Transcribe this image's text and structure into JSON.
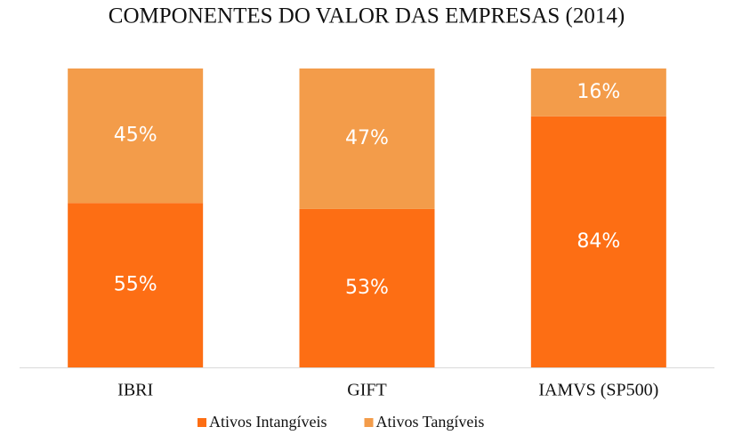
{
  "chart_data": {
    "type": "bar",
    "stacked": true,
    "title": "COMPONENTES DO VALOR DAS EMPRESAS (2014)",
    "categories": [
      "IBRI",
      "GIFT",
      "IAMVS (SP500)"
    ],
    "series": [
      {
        "name": "Ativos Intangíveis",
        "color": "#fd6e14",
        "values": [
          55,
          53,
          84
        ],
        "value_labels": [
          "55%",
          "53%",
          "84%"
        ]
      },
      {
        "name": "Ativos Tangíveis",
        "color": "#f39c4a",
        "values": [
          45,
          47,
          16
        ],
        "value_labels": [
          "45%",
          "47%",
          "16%"
        ]
      }
    ],
    "legend": "bottom"
  }
}
